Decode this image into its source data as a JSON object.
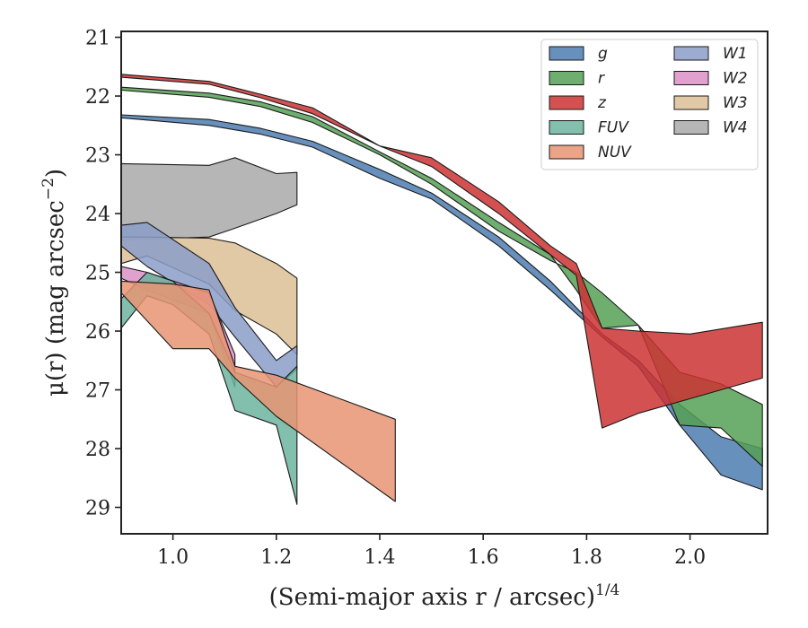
{
  "chart_data": {
    "type": "area",
    "xlabel": "(Semi-major axis r / arcsec)",
    "xlabel_italic_var": "r",
    "xlabel_exponent": "1/4",
    "ylabel": "μ(r) (mag arcsec",
    "ylabel_exponent": "−2",
    "ylabel_close": ")",
    "xlim": [
      0.9,
      2.15
    ],
    "ylim": [
      29.45,
      20.9
    ],
    "y_inverted": true,
    "xticks": [
      1.0,
      1.2,
      1.4,
      1.6,
      1.8,
      2.0
    ],
    "xtick_labels": [
      "1.0",
      "1.2",
      "1.4",
      "1.6",
      "1.8",
      "2.0"
    ],
    "yticks": [
      21,
      22,
      23,
      24,
      25,
      26,
      27,
      28,
      29
    ],
    "ytick_labels": [
      "21",
      "22",
      "23",
      "24",
      "25",
      "26",
      "27",
      "28",
      "29"
    ],
    "legend_position": "top-right",
    "legend_columns": 2,
    "series": [
      {
        "name": "W4",
        "color": "#a9a9a9",
        "x": [
          0.9,
          1.07,
          1.12,
          1.2,
          1.24
        ],
        "y_upper": [
          23.15,
          23.18,
          23.05,
          23.32,
          23.3
        ],
        "y_lower": [
          24.45,
          24.4,
          24.25,
          24.0,
          23.85
        ]
      },
      {
        "name": "W3",
        "color": "#ddc096",
        "x": [
          0.9,
          0.95,
          1.07,
          1.12,
          1.2,
          1.24
        ],
        "y_upper": [
          24.4,
          24.4,
          24.42,
          24.5,
          24.85,
          25.1
        ],
        "y_lower": [
          24.85,
          24.72,
          25.2,
          25.65,
          26.05,
          26.4
        ]
      },
      {
        "name": "W1",
        "color": "#8b9ec8",
        "x": [
          0.9,
          0.95,
          1.07,
          1.12,
          1.2,
          1.24
        ],
        "y_upper": [
          24.2,
          24.15,
          24.85,
          25.6,
          26.5,
          26.25
        ],
        "y_lower": [
          24.55,
          24.9,
          25.55,
          26.1,
          26.95,
          26.65
        ]
      },
      {
        "name": "W2",
        "color": "#dc90c7",
        "x": [
          0.9,
          0.95,
          1.07,
          1.12
        ],
        "y_upper": [
          24.9,
          25.0,
          25.35,
          26.4
        ],
        "y_lower": [
          25.1,
          25.3,
          25.7,
          26.95
        ]
      },
      {
        "name": "FUV",
        "color": "#6cb49f",
        "x": [
          0.9,
          0.95,
          1.0,
          1.07,
          1.12,
          1.2,
          1.24
        ],
        "y_upper": [
          25.45,
          25.0,
          25.15,
          25.7,
          26.7,
          26.95,
          26.6
        ],
        "y_lower": [
          25.95,
          25.4,
          25.55,
          26.05,
          27.35,
          27.6,
          28.95
        ]
      },
      {
        "name": "NUV",
        "color": "#e79472",
        "x": [
          0.9,
          1.0,
          1.07,
          1.12,
          1.2,
          1.43
        ],
        "y_upper": [
          25.15,
          25.2,
          25.3,
          26.6,
          26.75,
          27.5
        ],
        "y_lower": [
          25.35,
          26.3,
          26.3,
          26.8,
          27.45,
          28.9
        ]
      },
      {
        "name": "g",
        "color": "#4c7db0",
        "x": [
          0.9,
          1.07,
          1.17,
          1.27,
          1.4,
          1.5,
          1.63,
          1.73,
          1.83,
          1.9,
          1.98,
          2.06,
          2.14
        ],
        "y_upper": [
          22.32,
          22.4,
          22.55,
          22.77,
          23.25,
          23.65,
          24.4,
          25.15,
          26.05,
          26.5,
          27.25,
          27.8,
          28.0
        ],
        "y_lower": [
          22.37,
          22.5,
          22.65,
          22.87,
          23.4,
          23.75,
          24.55,
          25.3,
          26.1,
          26.6,
          27.6,
          28.45,
          28.7
        ]
      },
      {
        "name": "r",
        "color": "#55a055",
        "x": [
          0.9,
          1.07,
          1.17,
          1.27,
          1.4,
          1.5,
          1.63,
          1.73,
          1.78,
          1.83,
          1.9,
          1.98,
          2.06,
          2.14
        ],
        "y_upper": [
          21.85,
          21.95,
          22.1,
          22.35,
          22.95,
          23.4,
          24.15,
          24.7,
          25.3,
          25.95,
          25.9,
          26.7,
          26.9,
          27.25
        ],
        "y_lower": [
          21.9,
          22.02,
          22.18,
          22.45,
          23.0,
          23.5,
          24.3,
          24.8,
          25.0,
          25.35,
          25.9,
          27.6,
          27.65,
          28.3
        ]
      },
      {
        "name": "z",
        "color": "#cc3333",
        "x": [
          0.9,
          1.07,
          1.17,
          1.27,
          1.4,
          1.5,
          1.63,
          1.73,
          1.78,
          1.83,
          1.9,
          2.0,
          2.14
        ],
        "y_upper": [
          21.63,
          21.75,
          21.97,
          22.2,
          22.85,
          23.05,
          23.8,
          24.55,
          24.85,
          25.95,
          26.0,
          26.05,
          25.85
        ],
        "y_lower": [
          21.68,
          21.8,
          22.03,
          22.3,
          22.85,
          23.2,
          24.0,
          24.7,
          25.05,
          27.65,
          27.4,
          27.15,
          26.8
        ]
      }
    ],
    "legend": [
      {
        "name": "g",
        "color": "#4c7db0"
      },
      {
        "name": "r",
        "color": "#55a055"
      },
      {
        "name": "z",
        "color": "#cc3333"
      },
      {
        "name": "FUV",
        "color": "#6cb49f"
      },
      {
        "name": "NUV",
        "color": "#e79472"
      },
      {
        "name": "W1",
        "color": "#8b9ec8"
      },
      {
        "name": "W2",
        "color": "#dc90c7"
      },
      {
        "name": "W3",
        "color": "#ddc096"
      },
      {
        "name": "W4",
        "color": "#a9a9a9"
      }
    ]
  }
}
